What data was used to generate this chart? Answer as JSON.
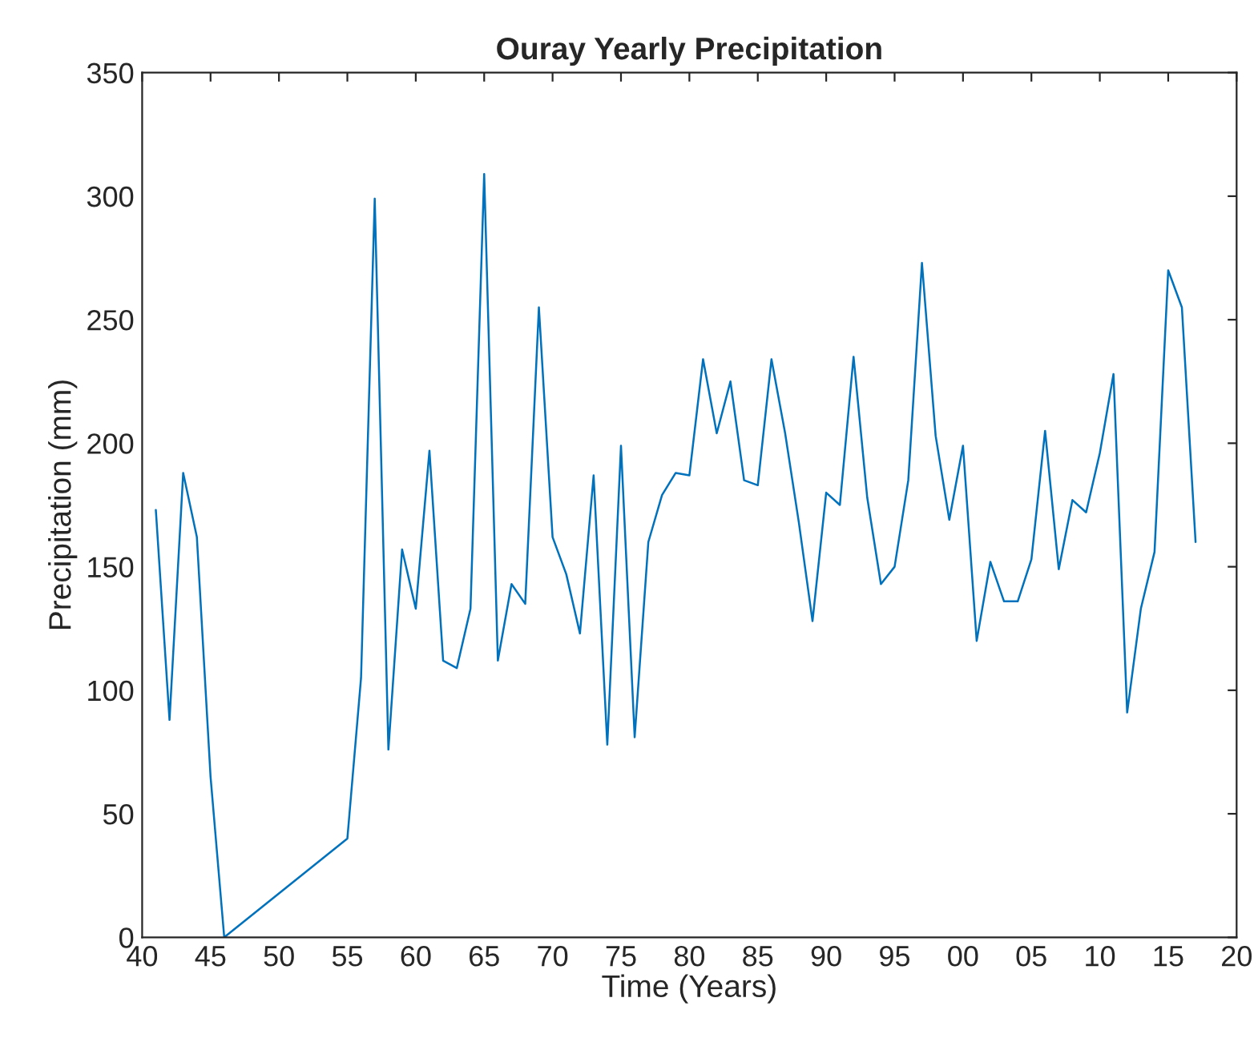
{
  "chart_data": {
    "type": "line",
    "title": "Ouray Yearly Precipitation",
    "xlabel": "Time (Years)",
    "ylabel": "Precipitation (mm)",
    "x": [
      1941,
      1942,
      1943,
      1944,
      1945,
      1946,
      1955,
      1956,
      1957,
      1958,
      1959,
      1960,
      1961,
      1962,
      1963,
      1964,
      1965,
      1966,
      1967,
      1968,
      1969,
      1970,
      1971,
      1972,
      1973,
      1974,
      1975,
      1976,
      1977,
      1978,
      1979,
      1980,
      1981,
      1982,
      1983,
      1984,
      1985,
      1986,
      1987,
      1988,
      1989,
      1990,
      1991,
      1992,
      1993,
      1994,
      1995,
      1996,
      1997,
      1998,
      1999,
      2000,
      2001,
      2002,
      2003,
      2004,
      2005,
      2006,
      2007,
      2008,
      2009,
      2010,
      2011,
      2012,
      2013,
      2014,
      2015,
      2016,
      2017
    ],
    "series": [
      {
        "color": "#0072bd",
        "values": [
          173,
          88,
          188,
          162,
          65,
          0,
          40,
          105,
          299,
          76,
          157,
          133,
          197,
          112,
          109,
          133,
          309,
          112,
          143,
          135,
          255,
          162,
          147,
          123,
          187,
          78,
          199,
          81,
          160,
          179,
          188,
          187,
          234,
          204,
          225,
          185,
          183,
          234,
          204,
          168,
          128,
          180,
          175,
          235,
          178,
          143,
          150,
          185,
          273,
          203,
          169,
          199,
          120,
          152,
          136,
          136,
          153,
          205,
          149,
          177,
          172,
          196,
          228,
          91,
          133,
          156,
          270,
          255,
          160
        ]
      }
    ],
    "xlim": [
      1940,
      2020
    ],
    "xticks": [
      {
        "value": 1940,
        "label": "40"
      },
      {
        "value": 1945,
        "label": "45"
      },
      {
        "value": 1950,
        "label": "50"
      },
      {
        "value": 1955,
        "label": "55"
      },
      {
        "value": 1960,
        "label": "60"
      },
      {
        "value": 1965,
        "label": "65"
      },
      {
        "value": 1970,
        "label": "70"
      },
      {
        "value": 1975,
        "label": "75"
      },
      {
        "value": 1980,
        "label": "80"
      },
      {
        "value": 1985,
        "label": "85"
      },
      {
        "value": 1990,
        "label": "90"
      },
      {
        "value": 1995,
        "label": "95"
      },
      {
        "value": 2000,
        "label": "00"
      },
      {
        "value": 2005,
        "label": "05"
      },
      {
        "value": 2010,
        "label": "10"
      },
      {
        "value": 2015,
        "label": "15"
      },
      {
        "value": 2020,
        "label": "20"
      }
    ],
    "ylim": [
      0,
      350
    ],
    "yticks": [
      0,
      50,
      100,
      150,
      200,
      250,
      300,
      350
    ],
    "grid": false,
    "marker": "none",
    "line_style": "solid"
  }
}
